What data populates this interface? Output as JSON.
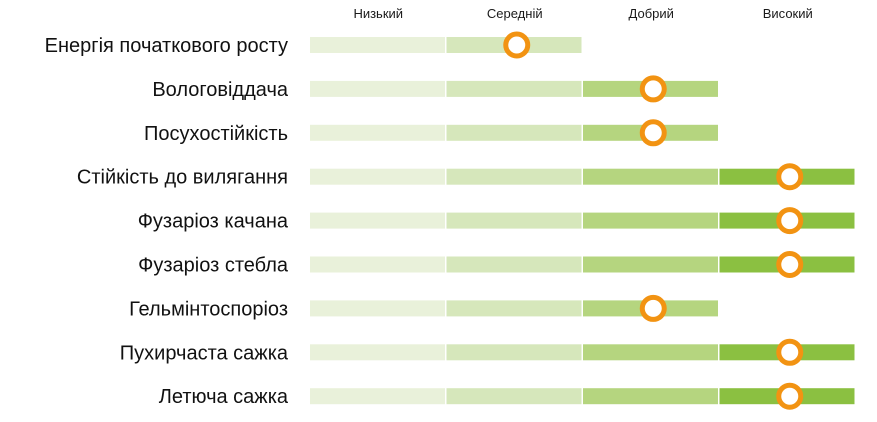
{
  "chart_data": {
    "type": "rating-bars",
    "levels": [
      "Низький",
      "Середній",
      "Добрий",
      "Високий"
    ],
    "level_colors": [
      "#e9f1da",
      "#d6e7bb",
      "#b5d57f",
      "#8bc041"
    ],
    "marker_color": "#f29312",
    "rows": [
      {
        "label": "Енергія початкового росту",
        "rating": 2,
        "position": 1.5
      },
      {
        "label": "Вологовіддача",
        "rating": 3,
        "position": 2.5
      },
      {
        "label": "Посухостійкість",
        "rating": 3,
        "position": 2.5
      },
      {
        "label": "Стійкість до вилягання",
        "rating": 4,
        "position": 3.5
      },
      {
        "label": "Фузаріоз качана",
        "rating": 4,
        "position": 3.5
      },
      {
        "label": "Фузаріоз стебла",
        "rating": 4,
        "position": 3.5
      },
      {
        "label": "Гельмінтоспоріоз",
        "rating": 3,
        "position": 2.5
      },
      {
        "label": "Пухирчаста сажка",
        "rating": 4,
        "position": 3.5
      },
      {
        "label": "Летюча сажка",
        "rating": 4,
        "position": 3.5
      }
    ]
  }
}
